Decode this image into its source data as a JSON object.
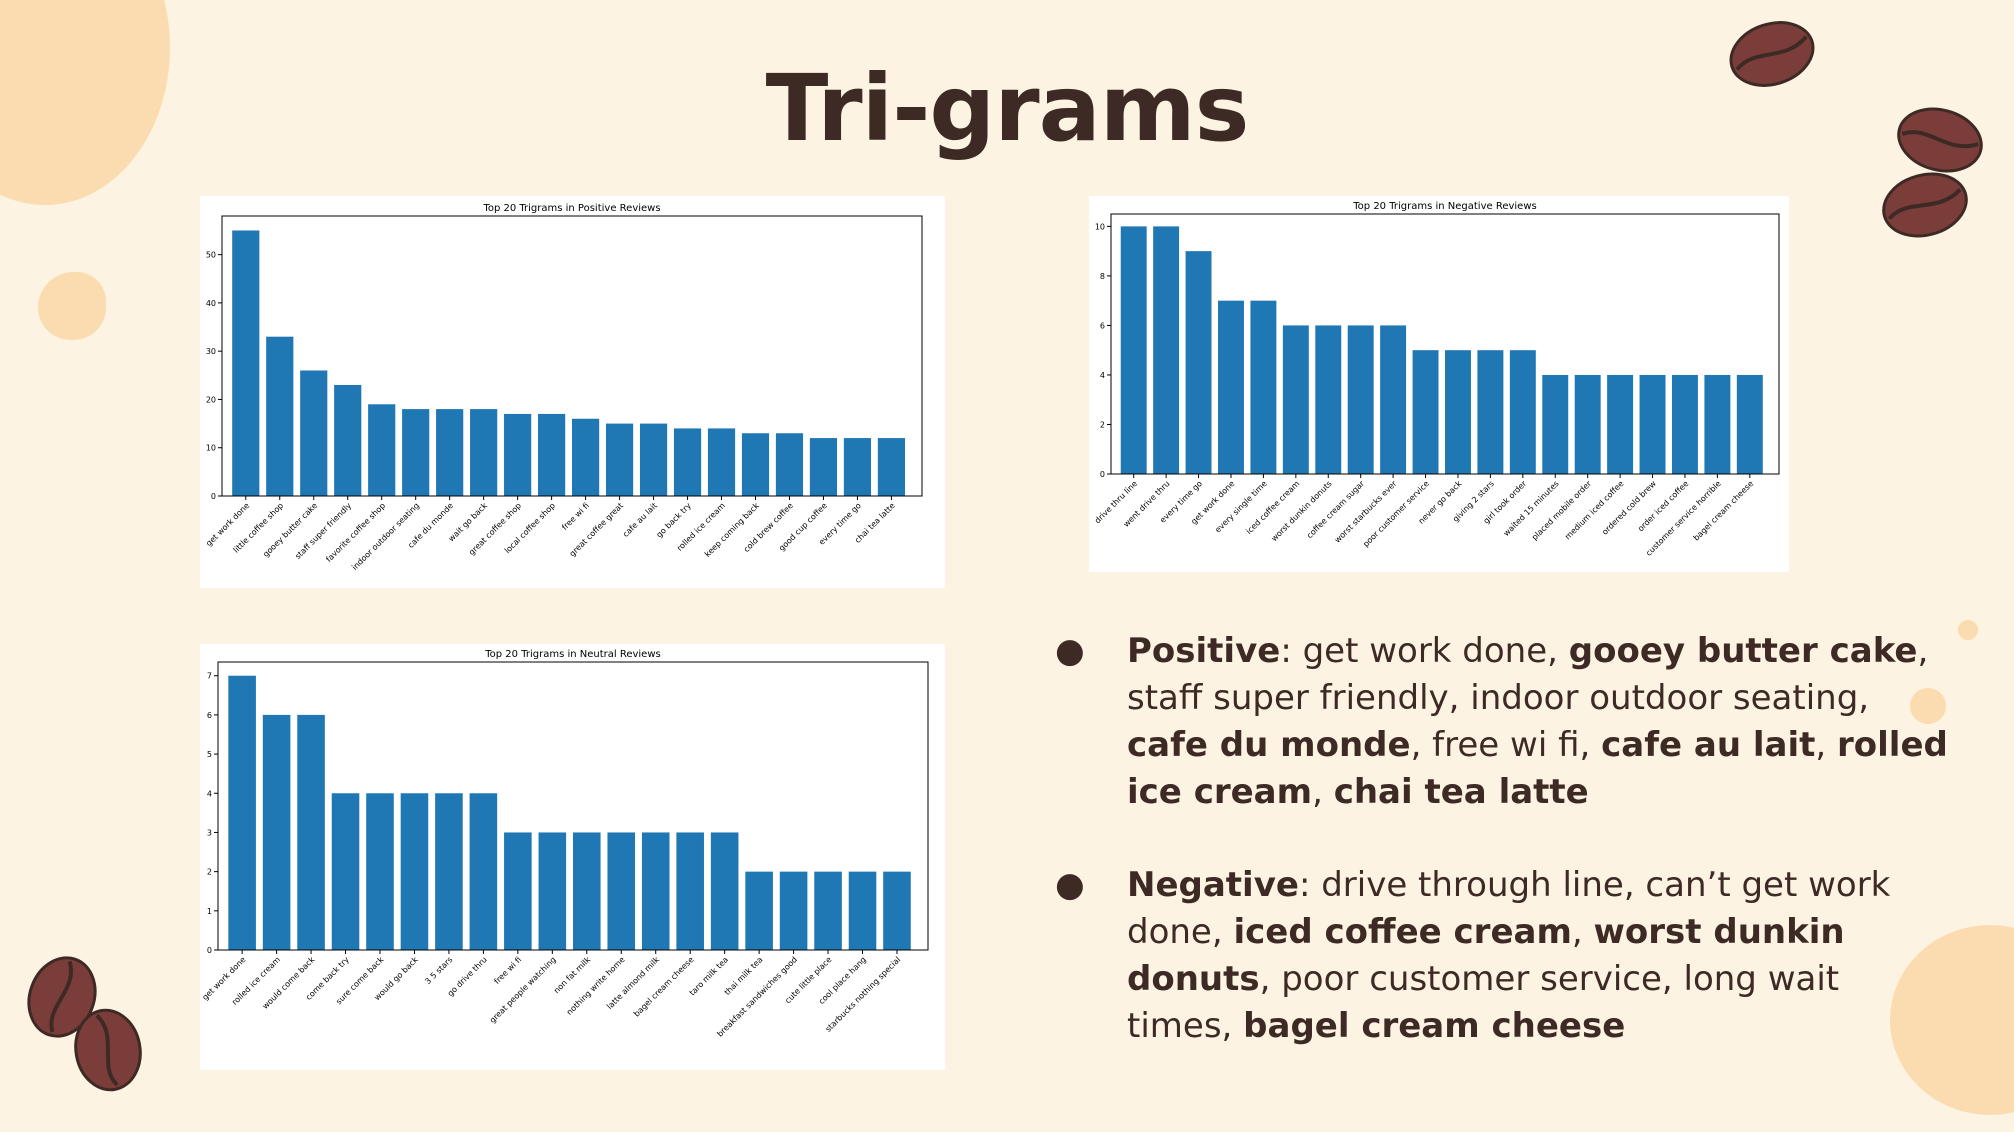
{
  "title": "Tri-grams",
  "colors": {
    "bar": "#1f77b4",
    "background": "#fdf3e3",
    "text": "#3e2a25"
  },
  "chart_data": [
    {
      "type": "bar",
      "title": "Top 20 Trigrams in Positive Reviews",
      "categories": [
        "get work done",
        "little coffee shop",
        "gooey butter cake",
        "staff super friendly",
        "favorite coffee shop",
        "indoor outdoor seating",
        "cafe du monde",
        "wait go back",
        "great coffee shop",
        "local coffee shop",
        "free wi fi",
        "great coffee great",
        "cafe au lait",
        "go back try",
        "rolled ice cream",
        "keep coming back",
        "cold brew coffee",
        "good cup coffee",
        "every time go",
        "chai tea latte"
      ],
      "values": [
        55,
        33,
        26,
        23,
        19,
        18,
        18,
        18,
        17,
        17,
        16,
        15,
        15,
        14,
        14,
        13,
        13,
        12,
        12,
        12
      ],
      "ylim": [
        0,
        58
      ],
      "yticks": [
        0,
        10,
        20,
        30,
        40,
        50
      ]
    },
    {
      "type": "bar",
      "title": "Top 20 Trigrams in Negative Reviews",
      "categories": [
        "drive thru line",
        "went drive thru",
        "every time go",
        "get work done",
        "every single time",
        "iced coffee cream",
        "worst dunkin donuts",
        "coffee cream sugar",
        "worst starbucks ever",
        "poor customer service",
        "never go back",
        "giving 2 stars",
        "girl took order",
        "waited 15 minutes",
        "placed mobile order",
        "medium iced coffee",
        "ordered cold brew",
        "order iced coffee",
        "customer service horrible",
        "bagel cream cheese"
      ],
      "values": [
        10,
        10,
        9,
        7,
        7,
        6,
        6,
        6,
        6,
        5,
        5,
        5,
        5,
        4,
        4,
        4,
        4,
        4,
        4,
        4
      ],
      "ylim": [
        0,
        10.5
      ],
      "yticks": [
        0,
        2,
        4,
        6,
        8,
        10
      ]
    },
    {
      "type": "bar",
      "title": "Top 20 Trigrams in Neutral Reviews",
      "categories": [
        "get work done",
        "rolled ice cream",
        "would come back",
        "come back try",
        "sure come back",
        "would go back",
        "3 5 stars",
        "go drive thru",
        "free wi fi",
        "great people watching",
        "non fat milk",
        "nothing write home",
        "latte almond milk",
        "bagel cream cheese",
        "taro milk tea",
        "thai milk tea",
        "breakfast sandwiches good",
        "cute little place",
        "cool place hang",
        "starbucks nothing special"
      ],
      "values": [
        7,
        6,
        6,
        4,
        4,
        4,
        4,
        4,
        3,
        3,
        3,
        3,
        3,
        3,
        3,
        2,
        2,
        2,
        2,
        2
      ],
      "ylim": [
        0,
        7.35
      ],
      "yticks": [
        0,
        1,
        2,
        3,
        4,
        5,
        6,
        7
      ]
    }
  ],
  "bullets": [
    {
      "label": "Positive",
      "parts": [
        {
          "text": ": get work done, ",
          "bold": false
        },
        {
          "text": "gooey butter cake",
          "bold": true
        },
        {
          "text": ", staff super friendly, indoor outdoor seating, ",
          "bold": false
        },
        {
          "text": "cafe du monde",
          "bold": true
        },
        {
          "text": ", free wi fi, ",
          "bold": false
        },
        {
          "text": "cafe au lait",
          "bold": true
        },
        {
          "text": ", ",
          "bold": false
        },
        {
          "text": "rolled ice cream",
          "bold": true
        },
        {
          "text": ", ",
          "bold": false
        },
        {
          "text": "chai tea latte",
          "bold": true
        }
      ]
    },
    {
      "label": "Negative",
      "parts": [
        {
          "text": ": drive through line, can’t get work done, ",
          "bold": false
        },
        {
          "text": "iced coffee cream",
          "bold": true
        },
        {
          "text": ", ",
          "bold": false
        },
        {
          "text": "worst dunkin donuts",
          "bold": true
        },
        {
          "text": ", poor customer service, long wait times, ",
          "bold": false
        },
        {
          "text": "bagel cream cheese",
          "bold": true
        }
      ]
    }
  ]
}
